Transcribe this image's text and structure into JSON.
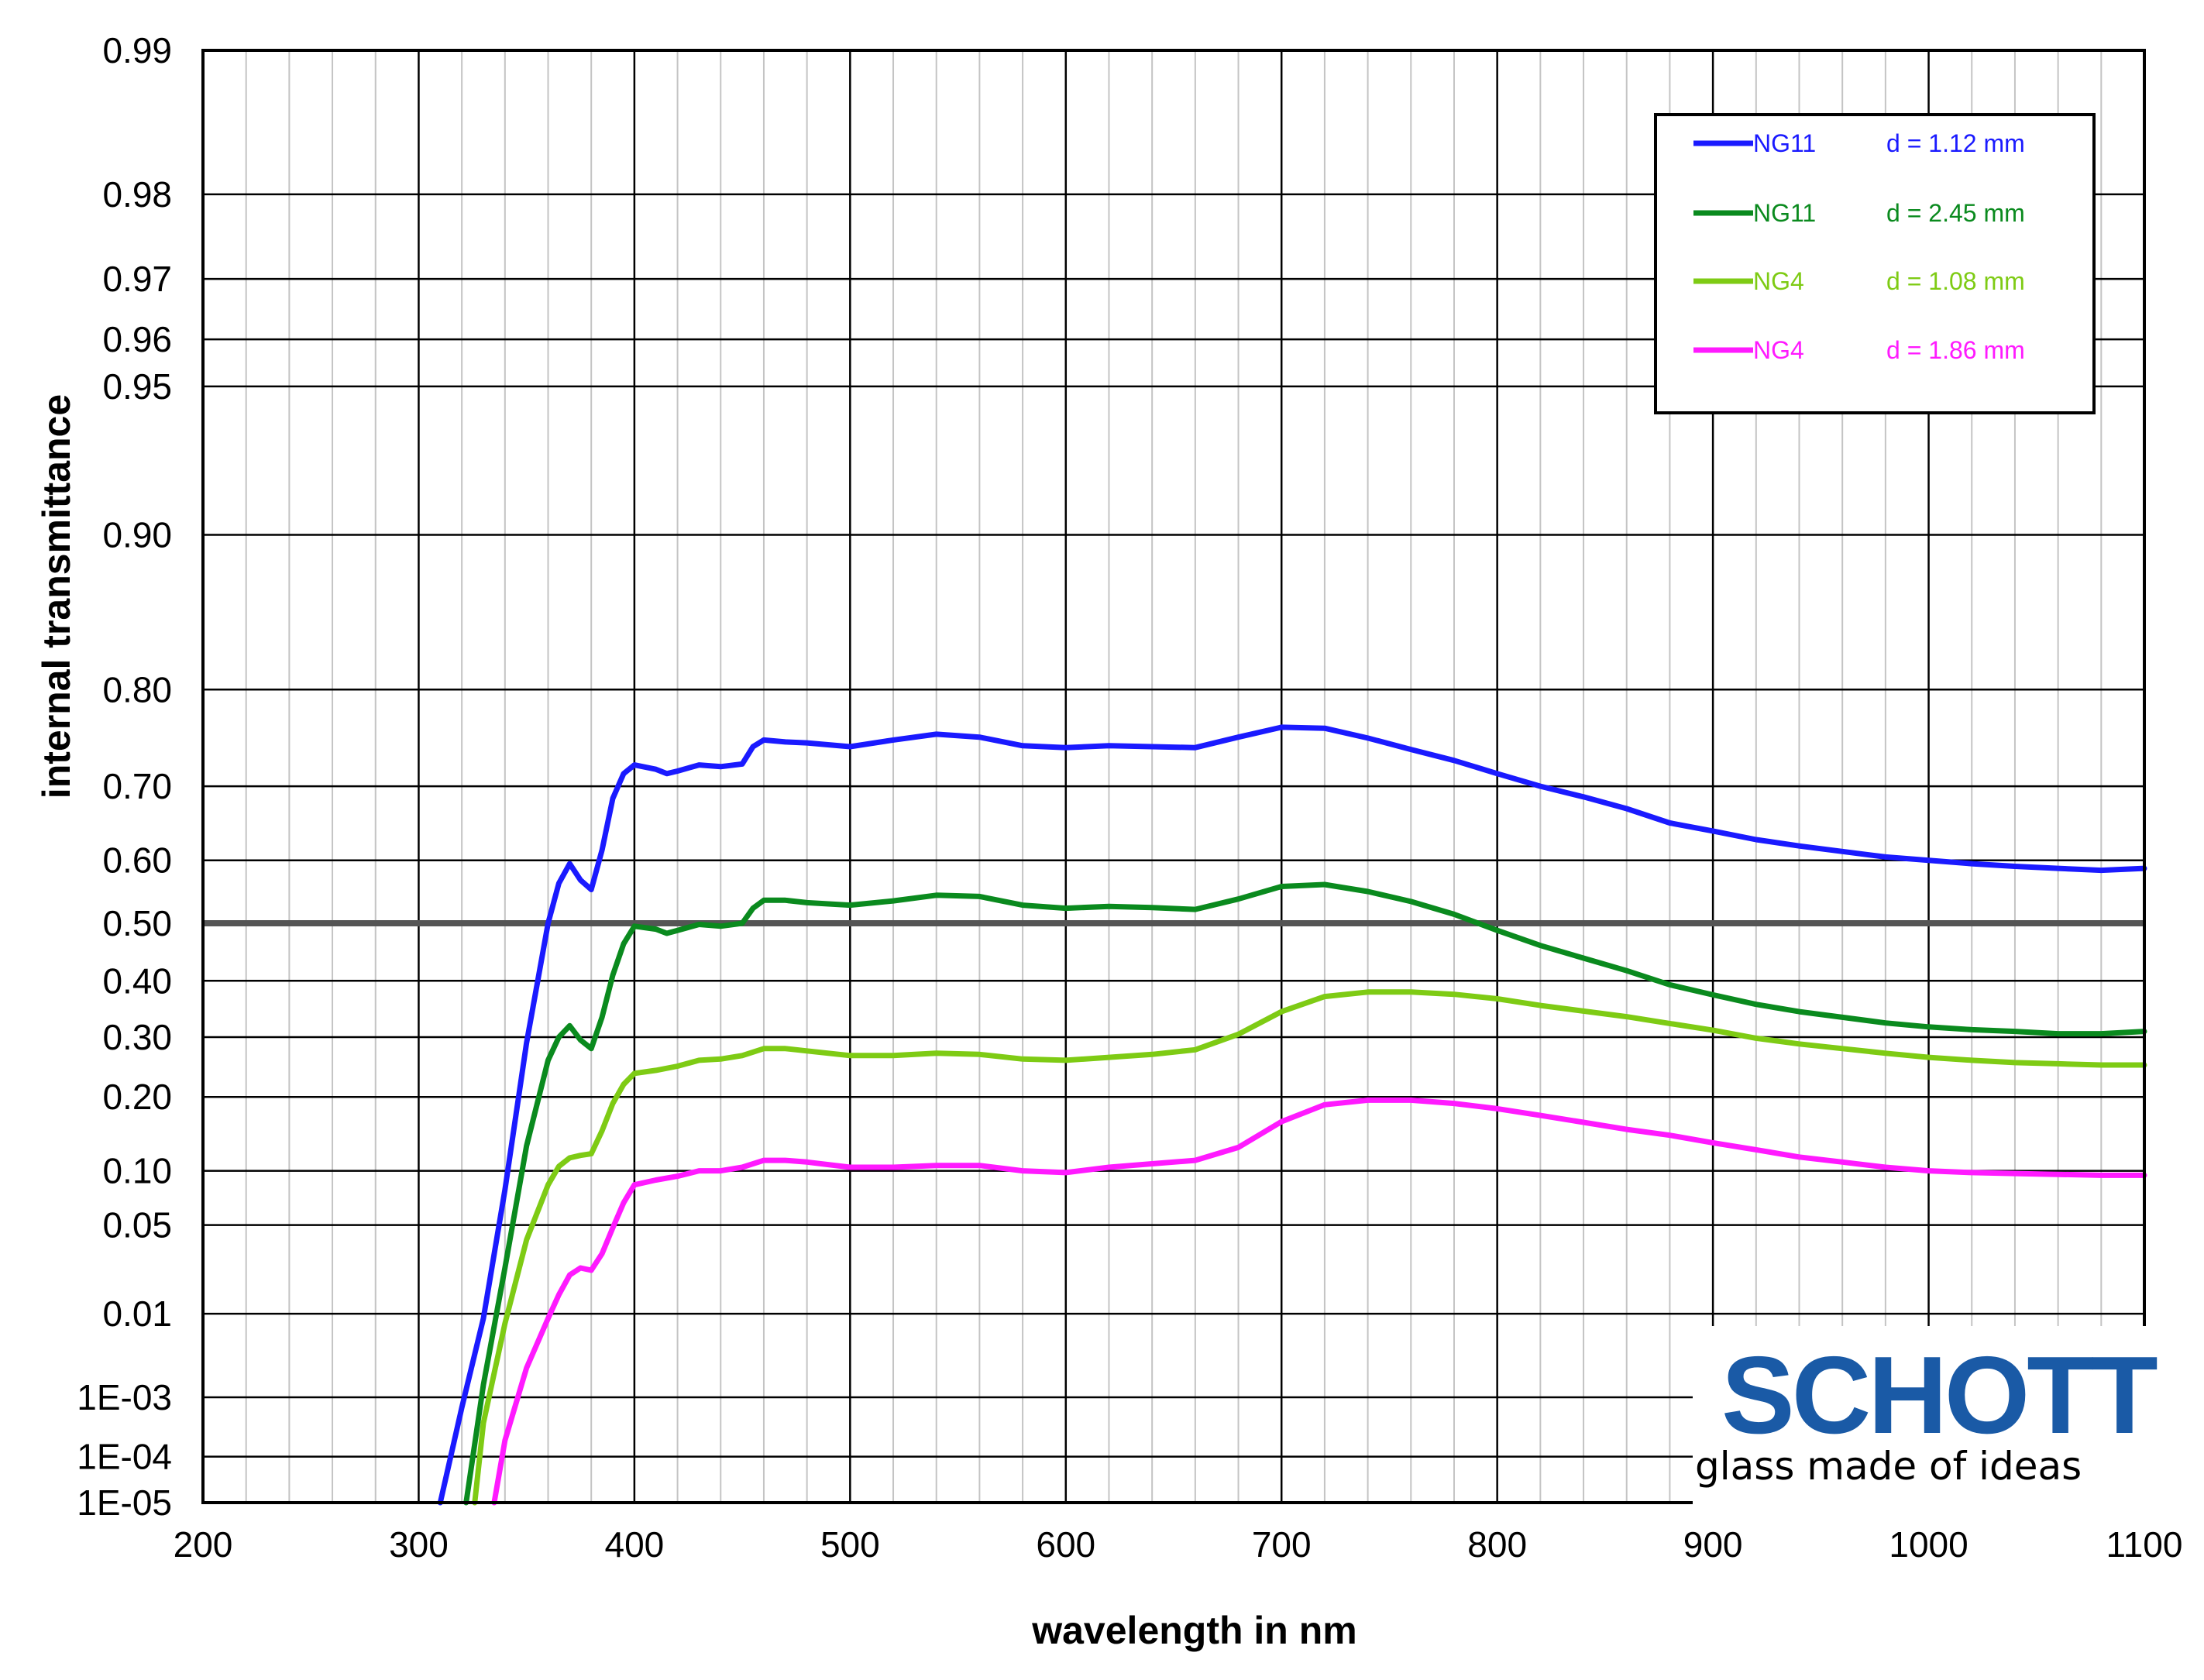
{
  "chart_data": {
    "type": "line",
    "xlabel": "wavelength in nm",
    "ylabel": "internal transmittance",
    "xlim": [
      200,
      1100
    ],
    "x_ticks": [
      200,
      300,
      400,
      500,
      600,
      700,
      800,
      900,
      1000,
      1100
    ],
    "x_tick_labels": [
      "200",
      "300",
      "400",
      "500",
      "600",
      "700",
      "800",
      "900",
      "1000",
      "1100"
    ],
    "y_scale": "diabatic (log of log)",
    "ylim": [
      1e-05,
      0.99
    ],
    "y_ticks": [
      1e-05,
      0.0001,
      0.001,
      0.01,
      0.05,
      0.1,
      0.2,
      0.3,
      0.4,
      0.5,
      0.6,
      0.7,
      0.8,
      0.9,
      0.95,
      0.96,
      0.97,
      0.98,
      0.99
    ],
    "y_tick_labels": [
      "1E-05",
      "1E-04",
      "1E-03",
      "0.01",
      "0.05",
      "0.10",
      "0.20",
      "0.30",
      "0.40",
      "0.50",
      "0.60",
      "0.70",
      "0.80",
      "0.90",
      "0.95",
      "0.96",
      "0.97",
      "0.98",
      "0.99"
    ],
    "grid": "major and minor, every 20 nm",
    "reference_line": 0.5,
    "legend_position": "top-right",
    "series": [
      {
        "name": "NG11",
        "thickness": "d = 1.12 mm",
        "color": "#1a1aff",
        "x": [
          310,
          320,
          330,
          340,
          350,
          360,
          365,
          370,
          375,
          380,
          385,
          390,
          395,
          400,
          410,
          415,
          420,
          430,
          440,
          450,
          455,
          460,
          470,
          480,
          500,
          520,
          540,
          560,
          580,
          600,
          620,
          640,
          660,
          680,
          700,
          720,
          740,
          760,
          780,
          800,
          820,
          840,
          860,
          880,
          900,
          920,
          940,
          960,
          980,
          1000,
          1020,
          1040,
          1060,
          1080,
          1100
        ],
        "y": [
          1e-05,
          0.0007,
          0.009,
          0.08,
          0.29,
          0.5,
          0.565,
          0.595,
          0.57,
          0.555,
          0.615,
          0.685,
          0.715,
          0.725,
          0.72,
          0.715,
          0.718,
          0.725,
          0.723,
          0.726,
          0.745,
          0.752,
          0.75,
          0.749,
          0.745,
          0.752,
          0.758,
          0.755,
          0.746,
          0.744,
          0.746,
          0.745,
          0.744,
          0.755,
          0.765,
          0.764,
          0.754,
          0.742,
          0.73,
          0.715,
          0.7,
          0.687,
          0.672,
          0.653,
          0.642,
          0.63,
          0.621,
          0.613,
          0.605,
          0.6,
          0.595,
          0.591,
          0.588,
          0.585,
          0.588
        ]
      },
      {
        "name": "NG11",
        "thickness": "d = 2.45 mm",
        "color": "#0a8a1e",
        "x": [
          322,
          330,
          340,
          350,
          360,
          365,
          370,
          375,
          380,
          385,
          390,
          395,
          400,
          410,
          415,
          420,
          430,
          440,
          450,
          455,
          460,
          470,
          480,
          500,
          520,
          540,
          560,
          580,
          600,
          620,
          640,
          660,
          680,
          700,
          720,
          740,
          760,
          780,
          800,
          820,
          840,
          860,
          880,
          900,
          920,
          940,
          960,
          980,
          1000,
          1020,
          1040,
          1060,
          1080,
          1100
        ],
        "y": [
          1e-05,
          0.0015,
          0.025,
          0.13,
          0.26,
          0.3,
          0.32,
          0.295,
          0.28,
          0.335,
          0.41,
          0.465,
          0.495,
          0.49,
          0.483,
          0.488,
          0.498,
          0.495,
          0.5,
          0.525,
          0.538,
          0.538,
          0.534,
          0.53,
          0.537,
          0.546,
          0.544,
          0.53,
          0.525,
          0.528,
          0.526,
          0.523,
          0.54,
          0.56,
          0.563,
          0.552,
          0.536,
          0.515,
          0.488,
          0.462,
          0.44,
          0.418,
          0.393,
          0.375,
          0.358,
          0.345,
          0.335,
          0.325,
          0.318,
          0.313,
          0.31,
          0.306,
          0.306,
          0.31
        ]
      },
      {
        "name": "NG4",
        "thickness": "d = 1.08 mm",
        "color": "#7ecb14",
        "x": [
          326,
          330,
          340,
          350,
          360,
          365,
          370,
          375,
          380,
          385,
          390,
          395,
          400,
          410,
          420,
          430,
          440,
          450,
          460,
          470,
          480,
          500,
          520,
          540,
          560,
          580,
          600,
          620,
          640,
          660,
          680,
          700,
          720,
          740,
          760,
          780,
          800,
          820,
          840,
          860,
          880,
          900,
          920,
          940,
          960,
          980,
          1000,
          1020,
          1040,
          1060,
          1080,
          1100
        ],
        "y": [
          1e-05,
          0.0004,
          0.008,
          0.04,
          0.085,
          0.105,
          0.115,
          0.118,
          0.12,
          0.15,
          0.19,
          0.22,
          0.238,
          0.243,
          0.25,
          0.26,
          0.262,
          0.268,
          0.28,
          0.28,
          0.276,
          0.268,
          0.268,
          0.272,
          0.27,
          0.262,
          0.26,
          0.265,
          0.27,
          0.278,
          0.305,
          0.345,
          0.372,
          0.38,
          0.38,
          0.376,
          0.368,
          0.356,
          0.346,
          0.336,
          0.324,
          0.312,
          0.298,
          0.288,
          0.28,
          0.272,
          0.265,
          0.26,
          0.256,
          0.254,
          0.252,
          0.252
        ]
      },
      {
        "name": "NG4",
        "thickness": "d = 1.86 mm",
        "color": "#ff1aff",
        "x": [
          335,
          340,
          350,
          360,
          365,
          370,
          375,
          380,
          385,
          390,
          395,
          400,
          410,
          420,
          430,
          440,
          450,
          460,
          470,
          480,
          500,
          520,
          540,
          560,
          580,
          600,
          620,
          640,
          660,
          680,
          700,
          720,
          740,
          760,
          780,
          800,
          820,
          840,
          860,
          880,
          900,
          920,
          940,
          960,
          980,
          1000,
          1020,
          1040,
          1060,
          1080,
          1100
        ],
        "y": [
          1e-05,
          0.0002,
          0.0025,
          0.009,
          0.015,
          0.022,
          0.025,
          0.024,
          0.032,
          0.048,
          0.068,
          0.085,
          0.09,
          0.094,
          0.1,
          0.1,
          0.104,
          0.112,
          0.112,
          0.11,
          0.104,
          0.104,
          0.106,
          0.106,
          0.1,
          0.098,
          0.104,
          0.108,
          0.112,
          0.128,
          0.163,
          0.188,
          0.195,
          0.195,
          0.19,
          0.182,
          0.172,
          0.162,
          0.152,
          0.144,
          0.134,
          0.125,
          0.116,
          0.11,
          0.104,
          0.1,
          0.098,
          0.097,
          0.096,
          0.095,
          0.095
        ]
      }
    ]
  },
  "logo": {
    "brand": "SCHOTT",
    "tagline": "glass made of ideas",
    "color": "#1a5aa6"
  }
}
